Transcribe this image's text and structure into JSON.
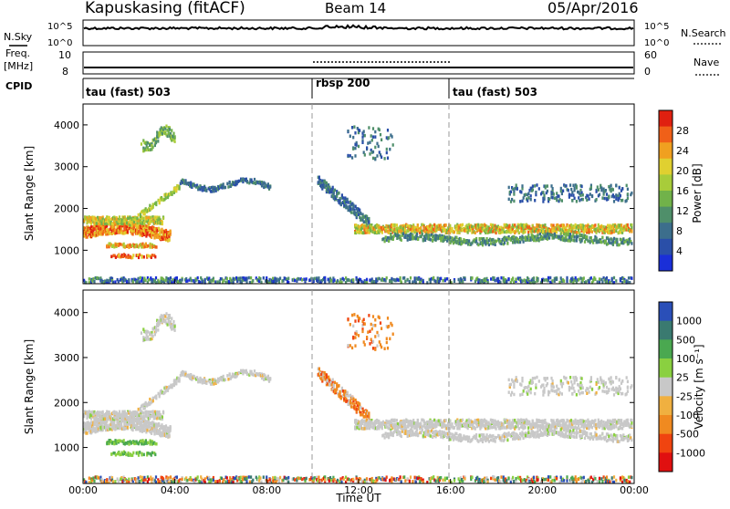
{
  "header": {
    "station": "Kapuskasing (fitACF)",
    "beam": "Beam 14",
    "date": "05/Apr/2016"
  },
  "top_panels": {
    "nsky_label": "N.Sky",
    "nsky_ticks": [
      "10^5",
      "10^0"
    ],
    "nsearch_label": "N.Search",
    "nsearch_ticks": [
      "10^5",
      "10^0"
    ],
    "freq_label_line1": "Freq.",
    "freq_label_line2": "[MHz]",
    "freq_ticks": [
      "10",
      "8"
    ],
    "nave_label": "Nave",
    "nave_ticks": [
      "60",
      "0"
    ],
    "cpid_label": "CPID",
    "cpid_segments": [
      {
        "name": "tau (fast) 503",
        "start_hour": 0,
        "end_hour": 10
      },
      {
        "name": "rbsp 200",
        "start_hour": 10,
        "end_hour": 16
      },
      {
        "name": "tau (fast) 503",
        "start_hour": 16,
        "end_hour": 24
      }
    ]
  },
  "chart_data": [
    {
      "type": "heatmap",
      "title": "",
      "xlabel": "Time UT",
      "ylabel": "Slant Range [km]",
      "xlim": [
        0,
        24
      ],
      "ylim": [
        200,
        4500
      ],
      "xticks": [
        "00:00",
        "04:00",
        "08:00",
        "12:00",
        "16:00",
        "20:00",
        "00:00"
      ],
      "yticks": [
        1000,
        2000,
        3000,
        4000
      ],
      "colorbar": {
        "label": "Power [dB]",
        "ticks": [
          "28",
          "24",
          "20",
          "16",
          "12",
          "8",
          "4"
        ],
        "range": [
          0,
          30
        ]
      },
      "mode_change_hours": [
        10,
        16
      ]
    },
    {
      "type": "heatmap",
      "title": "",
      "xlabel": "Time UT",
      "ylabel": "Slant Range [km]",
      "xlim": [
        0,
        24
      ],
      "ylim": [
        200,
        4500
      ],
      "xticks": [
        "00:00",
        "04:00",
        "08:00",
        "12:00",
        "16:00",
        "20:00",
        "00:00"
      ],
      "yticks": [
        1000,
        2000,
        3000,
        4000
      ],
      "colorbar": {
        "label": "Velocity [m s⁻¹]",
        "ticks": [
          "1000",
          "500",
          "100",
          "25",
          "-25",
          "-100",
          "-500",
          "-1000"
        ]
      },
      "mode_change_hours": [
        10,
        16
      ]
    }
  ],
  "colors": {
    "power_scale": [
      "#1a2fd8",
      "#2a4fa8",
      "#3c6e8c",
      "#4f8f6a",
      "#71b24a",
      "#a8cc3a",
      "#e0d030",
      "#f0a020",
      "#f06018",
      "#e02010"
    ],
    "velocity_scale": [
      "#e01010",
      "#f04410",
      "#f08a20",
      "#f0b040",
      "#c8c8c8",
      "#8ad040",
      "#4aa850",
      "#3a7a70",
      "#2a4fb8"
    ],
    "gray_scatter": "#c8c8c8"
  }
}
